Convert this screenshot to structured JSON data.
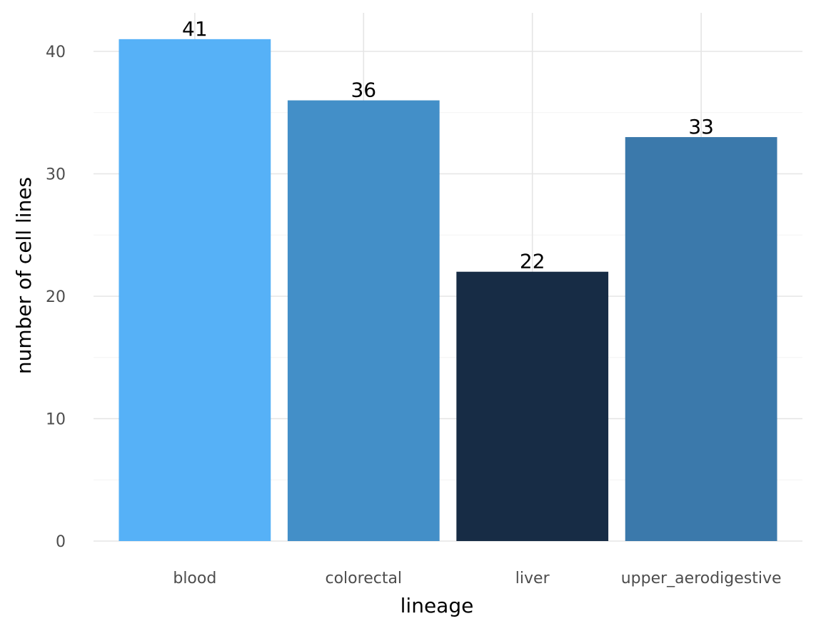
{
  "chart_data": {
    "type": "bar",
    "categories": [
      "blood",
      "colorectal",
      "liver",
      "upper_aerodigestive"
    ],
    "values": [
      41,
      36,
      22,
      33
    ],
    "data_labels": [
      "41",
      "36",
      "22",
      "33"
    ],
    "colors": [
      "#56b1f7",
      "#438fc8",
      "#172c45",
      "#3b79ab"
    ],
    "xlabel": "lineage",
    "ylabel": "number of cell lines",
    "ylim": [
      0,
      43
    ],
    "yticks": [
      0,
      10,
      20,
      30,
      40
    ],
    "ytick_labels": [
      "0",
      "10",
      "20",
      "30",
      "40"
    ],
    "grid": true,
    "legend": "none"
  }
}
